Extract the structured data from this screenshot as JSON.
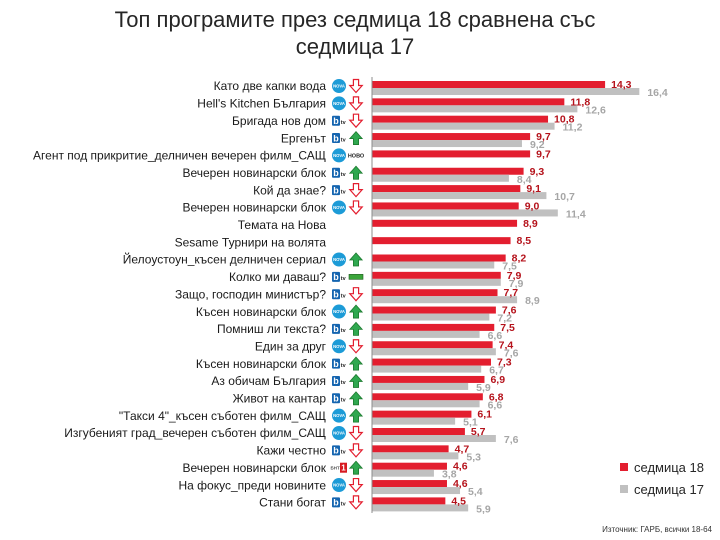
{
  "source": "Източник: ГАРБ, всички 18-64",
  "colors": {
    "week18_bar": "#e31e2f",
    "week17_bar": "#c0c0c0",
    "week18_value": "#b5121b",
    "week17_value": "#a6a6a6",
    "up_arrow": "#2fa84f",
    "up_arrow_border": "#1d7a2f",
    "down_arrow": "#e31e2f",
    "equal_mark": "#3ba53a",
    "equal_mark_border": "#1e5a1e",
    "nova_logo": "#1c9bd7",
    "btv_logo": "#1565b0",
    "bnt1_logo": "#d71920",
    "axis": "#8c8c8c"
  },
  "logo_lettering": {
    "nova": "NOVA",
    "btv_mark": "b",
    "btv_suffix": "tv",
    "bnt1_name": "БНТ",
    "bnt1_number": "1"
  },
  "new_badge": "НОВО",
  "chart_data": {
    "type": "bar",
    "orientation": "horizontal",
    "title": "Топ програмите през седмица 18 сравнена със седмица 17",
    "grid": false,
    "legend_position": "bottom-right",
    "categories": [
      "Като две капки вода",
      "Hell's Kitchen България",
      "Бригада нов дом",
      "Ергенът",
      "Агент под прикритие_делничен вечерен филм_САЩ",
      "Вечерен новинарски блок",
      "Кой да знае?",
      "Вечерен новинарски блок",
      "Темата на Нова",
      "Sesame Турнири на волята",
      "Йелоустоун_късен делничен сериал",
      "Колко ми даваш?",
      "Защо, господин министър?",
      "Късен новинарски блок",
      "Помниш ли текста?",
      "Един за друг",
      "Късен новинарски блок",
      "Аз обичам България",
      "Живот на кантар",
      "\"Такси 4\"_късен съботен филм_САЩ",
      "Изгубеният град_вечерен съботен филм_САЩ",
      "Кажи честно",
      "Вечерен новинарски блок",
      "На фокус_преди новините",
      "Стани богат"
    ],
    "series": [
      {
        "name": "седмица 18",
        "values": [
          14.3,
          11.8,
          10.8,
          9.7,
          9.7,
          9.3,
          9.1,
          9.0,
          8.9,
          8.5,
          8.2,
          7.9,
          7.7,
          7.6,
          7.5,
          7.4,
          7.3,
          6.9,
          6.8,
          6.1,
          5.7,
          4.7,
          4.6,
          4.6,
          4.5
        ],
        "labels": [
          "14,3",
          "11,8",
          "10,8",
          "9,7",
          "9,7",
          "9,3",
          "9,1",
          "9,0",
          "8,9",
          "8,5",
          "8,2",
          "7,9",
          "7,7",
          "7,6",
          "7,5",
          "7,4",
          "7,3",
          "6,9",
          "6,8",
          "6,1",
          "5,7",
          "4,7",
          "4,6",
          "4,6",
          "4,5"
        ]
      },
      {
        "name": "седмица 17",
        "values": [
          16.4,
          12.6,
          11.2,
          9.2,
          null,
          8.4,
          10.7,
          11.4,
          null,
          null,
          7.5,
          7.9,
          8.9,
          7.2,
          6.6,
          7.6,
          6.7,
          5.9,
          6.6,
          5.1,
          7.6,
          5.3,
          3.8,
          5.4,
          5.9
        ],
        "labels": [
          "16,4",
          "12,6",
          "11,2",
          "9,2",
          null,
          "8,4",
          "10,7",
          "11,4",
          null,
          null,
          "7,5",
          "7,9",
          "8,9",
          "7,2",
          "6,6",
          "7,6",
          "6,7",
          "5,9",
          "6,6",
          "5,1",
          "7,6",
          "5,3",
          "3,8",
          "5,4",
          "5,9"
        ]
      }
    ],
    "channel_icons": [
      "nova",
      "nova",
      "btv",
      "btv",
      "nova",
      "btv",
      "btv",
      "nova",
      "none",
      "none",
      "nova",
      "btv",
      "btv",
      "nova",
      "btv",
      "nova",
      "btv",
      "btv",
      "btv",
      "nova",
      "nova",
      "btv",
      "bnt1",
      "nova",
      "btv"
    ],
    "change_icons": [
      "down",
      "down",
      "down",
      "up",
      "new",
      "up",
      "down",
      "down",
      "none",
      "none",
      "up",
      "same",
      "down",
      "up",
      "up",
      "down",
      "up",
      "up",
      "up",
      "up",
      "down",
      "down",
      "up",
      "down",
      "down"
    ]
  }
}
